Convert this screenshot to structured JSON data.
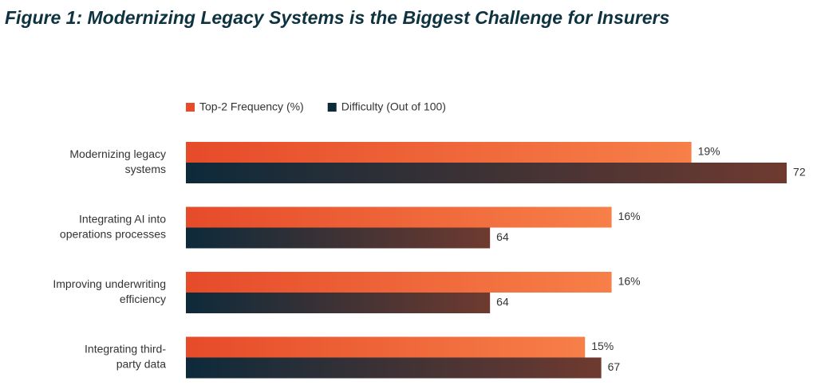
{
  "chart_data": {
    "type": "bar",
    "orientation": "horizontal",
    "title": "Figure 1: Modernizing Legacy Systems is the Biggest Challenge for Insurers",
    "categories": [
      [
        "Modernizing legacy",
        "systems"
      ],
      [
        "Integrating AI into",
        "operations processes"
      ],
      [
        "Improving underwriting",
        "efficiency"
      ],
      [
        "Integrating third-",
        "party data"
      ]
    ],
    "series": [
      {
        "name": "Top-2 Frequency (%)",
        "color": "#e64b2a",
        "gradient_end": "#f77f48",
        "values": [
          19,
          16,
          16,
          15
        ],
        "value_labels": [
          "19%",
          "16%",
          "16%",
          "15%"
        ]
      },
      {
        "name": "Difficulty (Out of 100)",
        "color": "#0d2a3a",
        "gradient_end": "#6f3a30",
        "values": [
          72,
          64,
          64,
          67
        ],
        "axis": "x2"
      }
    ],
    "xlim": [
      0,
      23
    ],
    "x2lim": [
      55.8,
      72.3
    ],
    "legend": "top-left",
    "grid": false
  }
}
